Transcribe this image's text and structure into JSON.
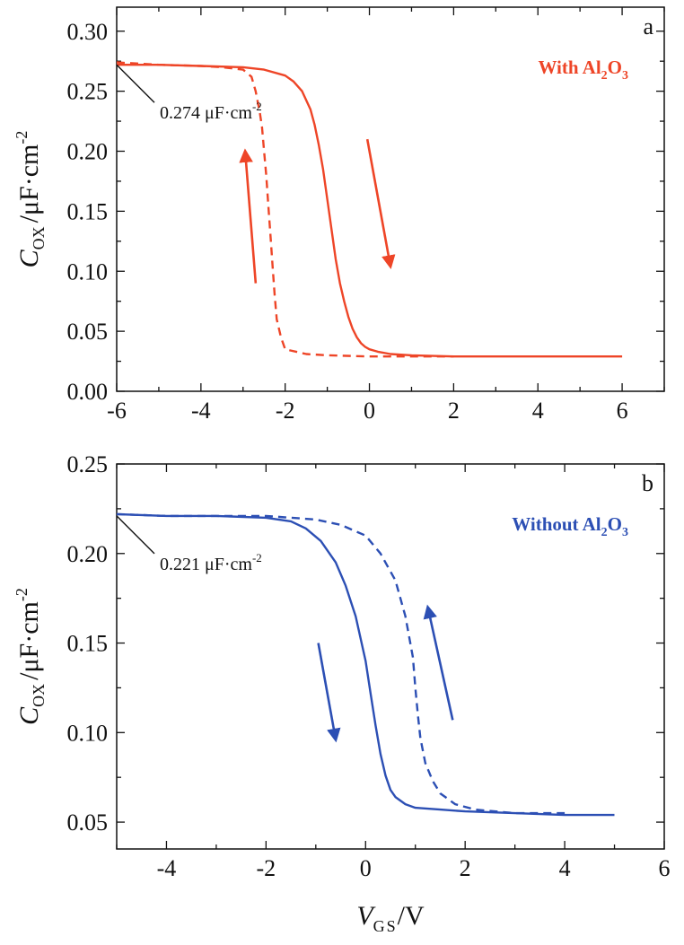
{
  "colors": {
    "panel_a": "#ee4527",
    "panel_b": "#2c4fb4",
    "axis": "#111111"
  },
  "chart_data": [
    {
      "type": "line",
      "panel_letter": "a",
      "legend": {
        "prefix": "With Al",
        "sub1": "2",
        "mid": "O",
        "sub2": "3",
        "placement": "top-right"
      },
      "ylabel": {
        "main": "C",
        "sub": "OX",
        "rest": "/μF·cm",
        "sup": "-2"
      },
      "xlabel": "",
      "xlim": [
        -6,
        7
      ],
      "ylim": [
        0,
        0.32
      ],
      "xticks": [
        -6,
        -4,
        -2,
        0,
        2,
        4,
        6
      ],
      "xtick_labels": [
        "-6",
        "-4",
        "-2",
        "0",
        "2",
        "4",
        "6"
      ],
      "yticks": [
        0,
        0.05,
        0.1,
        0.15,
        0.2,
        0.25,
        0.3
      ],
      "ytick_labels": [
        "0.00",
        "0.05",
        "0.10",
        "0.15",
        "0.20",
        "0.25",
        "0.30"
      ],
      "grid": false,
      "annotation": {
        "value": "0.274",
        "unit": "μF·cm",
        "unit_sup": "-2",
        "x": -6,
        "y": 0.272
      },
      "series": [
        {
          "style": "solid",
          "x": [
            -6,
            -5,
            -4,
            -3,
            -2.5,
            -2,
            -1.8,
            -1.6,
            -1.4,
            -1.3,
            -1.2,
            -1.1,
            -1.0,
            -0.9,
            -0.8,
            -0.7,
            -0.6,
            -0.5,
            -0.4,
            -0.3,
            -0.2,
            -0.1,
            0,
            0.2,
            0.5,
            1,
            2,
            4,
            6
          ],
          "y": [
            0.272,
            0.272,
            0.271,
            0.27,
            0.268,
            0.263,
            0.258,
            0.25,
            0.235,
            0.222,
            0.205,
            0.185,
            0.16,
            0.135,
            0.11,
            0.09,
            0.075,
            0.062,
            0.052,
            0.045,
            0.04,
            0.037,
            0.035,
            0.033,
            0.031,
            0.03,
            0.029,
            0.029,
            0.029
          ]
        },
        {
          "style": "dashed",
          "x": [
            -6,
            -5,
            -4,
            -3.5,
            -3,
            -2.8,
            -2.7,
            -2.6,
            -2.55,
            -2.5,
            -2.45,
            -2.4,
            -2.35,
            -2.3,
            -2.25,
            -2.2,
            -2.1,
            -2.0,
            -1.5,
            -1,
            0,
            1,
            1.5,
            2
          ],
          "y": [
            0.274,
            0.272,
            0.271,
            0.27,
            0.268,
            0.262,
            0.25,
            0.232,
            0.22,
            0.2,
            0.18,
            0.155,
            0.13,
            0.105,
            0.08,
            0.06,
            0.045,
            0.035,
            0.031,
            0.03,
            0.029,
            0.029,
            0.029,
            0.029
          ]
        }
      ],
      "arrows": [
        {
          "from": [
            -2.7,
            0.09
          ],
          "to": [
            -2.95,
            0.2
          ]
        },
        {
          "from": [
            -0.05,
            0.21
          ],
          "to": [
            0.5,
            0.104
          ]
        }
      ]
    },
    {
      "type": "line",
      "panel_letter": "b",
      "legend": {
        "prefix": "Without Al",
        "sub1": "2",
        "mid": "O",
        "sub2": "3",
        "placement": "top-right"
      },
      "ylabel": {
        "main": "C",
        "sub": "OX",
        "rest": "/μF·cm",
        "sup": "-2"
      },
      "xlabel": {
        "main": "V",
        "sub": "GS",
        "rest": "/V"
      },
      "xlim": [
        -5,
        6
      ],
      "ylim": [
        0.035,
        0.25
      ],
      "xticks": [
        -4,
        -2,
        0,
        2,
        4,
        6
      ],
      "xtick_labels": [
        "-4",
        "-2",
        "0",
        "2",
        "4",
        "6"
      ],
      "yticks": [
        0.05,
        0.1,
        0.15,
        0.2,
        0.25
      ],
      "ytick_labels": [
        "0.05",
        "0.10",
        "0.15",
        "0.20",
        "0.25"
      ],
      "grid": false,
      "annotation": {
        "value": "0.221",
        "unit": "μF·cm",
        "unit_sup": "-2",
        "x": -5,
        "y": 0.221
      },
      "series": [
        {
          "style": "solid",
          "x": [
            -5,
            -4,
            -3,
            -2,
            -1.5,
            -1.2,
            -0.9,
            -0.6,
            -0.4,
            -0.2,
            0,
            0.1,
            0.2,
            0.3,
            0.4,
            0.5,
            0.6,
            0.8,
            1,
            1.5,
            2,
            3,
            4,
            5
          ],
          "y": [
            0.222,
            0.221,
            0.221,
            0.22,
            0.218,
            0.214,
            0.207,
            0.195,
            0.182,
            0.165,
            0.14,
            0.122,
            0.104,
            0.088,
            0.076,
            0.068,
            0.064,
            0.06,
            0.058,
            0.057,
            0.056,
            0.055,
            0.054,
            0.054
          ]
        },
        {
          "style": "dashed",
          "x": [
            -5,
            -4,
            -3,
            -2,
            -1,
            -0.5,
            0,
            0.3,
            0.6,
            0.8,
            0.95,
            1.0,
            1.05,
            1.1,
            1.2,
            1.35,
            1.5,
            1.8,
            2.2,
            3,
            4
          ],
          "y": [
            0.222,
            0.221,
            0.221,
            0.221,
            0.219,
            0.216,
            0.21,
            0.2,
            0.185,
            0.165,
            0.142,
            0.125,
            0.11,
            0.097,
            0.083,
            0.073,
            0.066,
            0.06,
            0.057,
            0.055,
            0.055
          ]
        }
      ],
      "arrows": [
        {
          "from": [
            -0.95,
            0.15
          ],
          "to": [
            -0.6,
            0.096
          ]
        },
        {
          "from": [
            1.75,
            0.107
          ],
          "to": [
            1.25,
            0.17
          ]
        }
      ]
    }
  ]
}
